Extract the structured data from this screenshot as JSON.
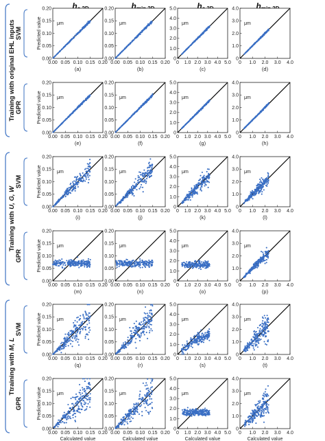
{
  "groups": [
    {
      "label_prefix": "Training with original EHL inputs",
      "label_suffix": ""
    },
    {
      "label_prefix": "Training with ",
      "label_suffix": "U, G, W"
    },
    {
      "label_prefix": "Ttraining with ",
      "label_suffix": "M, L"
    }
  ],
  "models": [
    "SVM",
    "GPR"
  ],
  "columns": [
    {
      "symbol": "h",
      "subscript": "c,2D"
    },
    {
      "symbol": "h",
      "subscript": "min,2D"
    },
    {
      "symbol": "h",
      "subscript": "c,3D"
    },
    {
      "symbol": "h",
      "subscript": "min,3D"
    }
  ],
  "panel_labels": [
    "(a)",
    "(b)",
    "(c)",
    "(d)",
    "(e)",
    "(f)",
    "(g)",
    "(h)",
    "(i)",
    "(j)",
    "(k)",
    "(l)",
    "(m)",
    "(n)",
    "(o)",
    "(p)",
    "(q)",
    "(r)",
    "(s)",
    "(t)",
    "(u)",
    "(v)",
    "(w)",
    "(x)"
  ],
  "ylabel": "Predicted value",
  "xlabel": "Calculated value",
  "unit": "μm",
  "point_color": "#3a6fc4",
  "line_color": "#000000",
  "bracket_color": "#4a7cc7",
  "chart_data": {
    "type": "scatter",
    "panel_count": 24,
    "axis_ranges": [
      [
        0,
        0.2
      ],
      [
        0,
        0.2
      ],
      [
        0,
        5
      ],
      [
        0,
        4
      ]
    ],
    "x_ticks": [
      [
        "0.00",
        "0.05",
        "0.10",
        "0.15",
        "0.20"
      ],
      [
        "0.00",
        "0.05",
        "0.10",
        "0.15",
        "0.20"
      ],
      [
        "0",
        "1.0",
        "2.0",
        "3.0",
        "4.0",
        "5.0"
      ],
      [
        "0",
        "1.0",
        "2.0",
        "3.0",
        "4.0"
      ]
    ],
    "y_ticks": [
      [
        "0.00",
        "0.05",
        "0.10",
        "0.15",
        "0.20"
      ],
      [
        "0.00",
        "0.05",
        "0.10",
        "0.15",
        "0.20"
      ],
      [
        "0",
        "1.0",
        "2.0",
        "3.0",
        "4.0",
        "5.0"
      ],
      [
        "0",
        "1.0",
        "2.0",
        "3.0",
        "4.0"
      ]
    ],
    "reference_line": "y = x",
    "row_patterns": [
      "tight",
      "tight",
      "moderate",
      "flat",
      "wide",
      "wide"
    ],
    "pattern_params": {
      "tight": {
        "noise": 0.015,
        "flat": false
      },
      "moderate": {
        "noise": 0.14,
        "flat": false
      },
      "wide": {
        "noise": 0.25,
        "flat": false
      },
      "flat": {
        "noise": 0.12,
        "flat": true
      }
    },
    "panel_overrides": {
      "15": {
        "noise": 0.1,
        "flat": false
      },
      "18": {
        "noise": 0.22,
        "flat": false,
        "curve": true
      },
      "22": {
        "noise": 0.1,
        "flat": true
      }
    },
    "flat_level": [
      0.07,
      0.07,
      1.6,
      1.6
    ],
    "x_extent": [
      [
        0,
        0.15
      ],
      [
        0,
        0.15
      ],
      [
        0.4,
        3.2
      ],
      [
        0.3,
        2.3
      ]
    ],
    "points_per_panel": 220
  }
}
